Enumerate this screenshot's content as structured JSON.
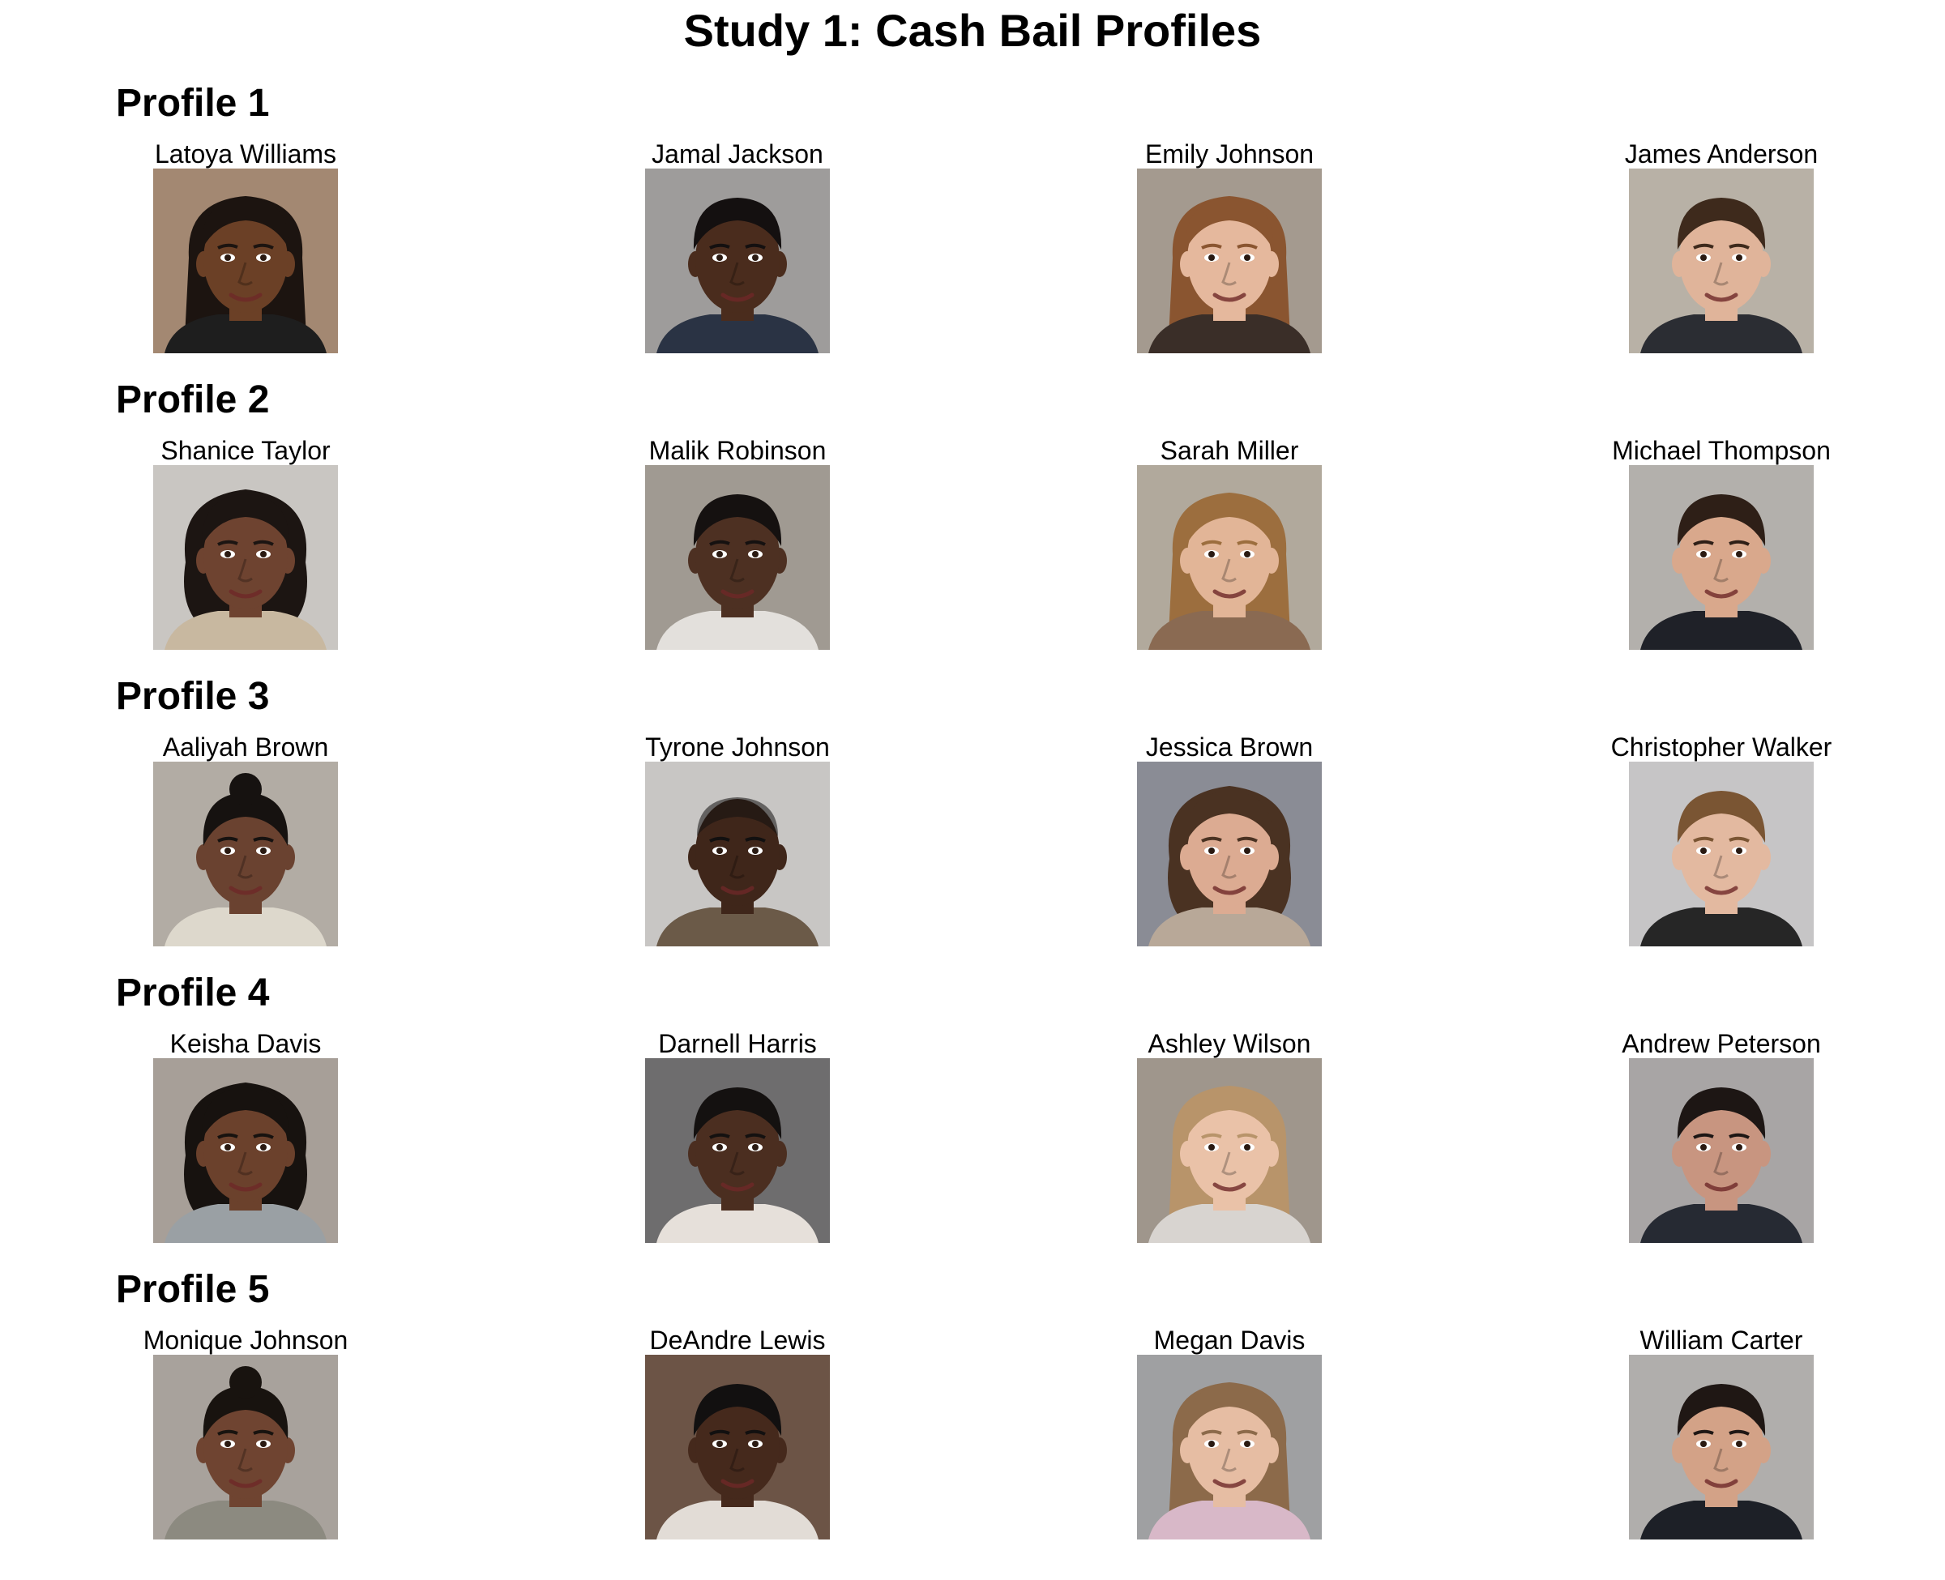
{
  "title": "Study 1: Cash Bail Profiles",
  "profiles": [
    {
      "label": "Profile 1",
      "people": [
        {
          "name": "Latoya Williams",
          "skin": "#6b4026",
          "hair": "#1c1410",
          "bg": "#a38872",
          "shirt": "#1e1e1e",
          "hair_style": "long"
        },
        {
          "name": "Jamal Jackson",
          "skin": "#4a2c1d",
          "hair": "#141010",
          "bg": "#9e9c9b",
          "shirt": "#2a3344",
          "hair_style": "short"
        },
        {
          "name": "Emily Johnson",
          "skin": "#e5b89d",
          "hair": "#8a5530",
          "bg": "#a49a8f",
          "shirt": "#3a2e28",
          "hair_style": "long"
        },
        {
          "name": "James Anderson",
          "skin": "#e0b49a",
          "hair": "#3e2a1c",
          "bg": "#b8b1a6",
          "shirt": "#2b2d33",
          "hair_style": "short"
        }
      ]
    },
    {
      "label": "Profile 2",
      "people": [
        {
          "name": "Shanice Taylor",
          "skin": "#6e4330",
          "hair": "#1c1512",
          "bg": "#c9c6c2",
          "shirt": "#c8b8a0",
          "hair_style": "curly"
        },
        {
          "name": "Malik Robinson",
          "skin": "#4d3022",
          "hair": "#151110",
          "bg": "#a09a92",
          "shirt": "#e3e0dc",
          "hair_style": "short"
        },
        {
          "name": "Sarah Miller",
          "skin": "#e2b597",
          "hair": "#9c6e3e",
          "bg": "#b1a99c",
          "shirt": "#8a6a52",
          "hair_style": "long"
        },
        {
          "name": "Michael Thompson",
          "skin": "#d9a88c",
          "hair": "#2e1f17",
          "bg": "#b3b0ac",
          "shirt": "#1f2128",
          "hair_style": "short"
        }
      ]
    },
    {
      "label": "Profile 3",
      "people": [
        {
          "name": "Aaliyah Brown",
          "skin": "#6a4230",
          "hair": "#161210",
          "bg": "#b2aca4",
          "shirt": "#ddd8cc",
          "hair_style": "bun"
        },
        {
          "name": "Tyrone Johnson",
          "skin": "#3f261a",
          "hair": "#121010",
          "bg": "#c8c6c4",
          "shirt": "#6b5a48",
          "hair_style": "bald"
        },
        {
          "name": "Jessica Brown",
          "skin": "#dcab92",
          "hair": "#4a3222",
          "bg": "#8a8c95",
          "shirt": "#b8a898",
          "hair_style": "curly"
        },
        {
          "name": "Christopher Walker",
          "skin": "#e3b9a0",
          "hair": "#7a5533",
          "bg": "#c6c5c6",
          "shirt": "#262626",
          "hair_style": "short"
        }
      ]
    },
    {
      "label": "Profile 4",
      "people": [
        {
          "name": "Keisha Davis",
          "skin": "#6b412c",
          "hair": "#17120f",
          "bg": "#a79f98",
          "shirt": "#9aa0a4",
          "hair_style": "curly"
        },
        {
          "name": "Darnell Harris",
          "skin": "#4b2e20",
          "hair": "#141110",
          "bg": "#6e6d6e",
          "shirt": "#e6e0da",
          "hair_style": "short"
        },
        {
          "name": "Ashley Wilson",
          "skin": "#eac2a8",
          "hair": "#b8946a",
          "bg": "#9f968c",
          "shirt": "#d8d4d0",
          "hair_style": "long"
        },
        {
          "name": "Andrew Peterson",
          "skin": "#c89580",
          "hair": "#1d1614",
          "bg": "#a8a5a5",
          "shirt": "#262a33",
          "hair_style": "short"
        }
      ]
    },
    {
      "label": "Profile 5",
      "people": [
        {
          "name": "Monique Johnson",
          "skin": "#6f4431",
          "hair": "#18130f",
          "bg": "#a8a29c",
          "shirt": "#8c8a80",
          "hair_style": "bun"
        },
        {
          "name": "DeAndre Lewis",
          "skin": "#45291c",
          "hair": "#121010",
          "bg": "#6c5446",
          "shirt": "#e2dcd6",
          "hair_style": "short"
        },
        {
          "name": "Megan Davis",
          "skin": "#e6bda3",
          "hair": "#8c6a4a",
          "bg": "#9fa0a2",
          "shirt": "#d8b8c8",
          "hair_style": "long"
        },
        {
          "name": "William Carter",
          "skin": "#d3a287",
          "hair": "#1f1714",
          "bg": "#b0aeac",
          "shirt": "#1d2027",
          "hair_style": "short"
        }
      ]
    }
  ]
}
